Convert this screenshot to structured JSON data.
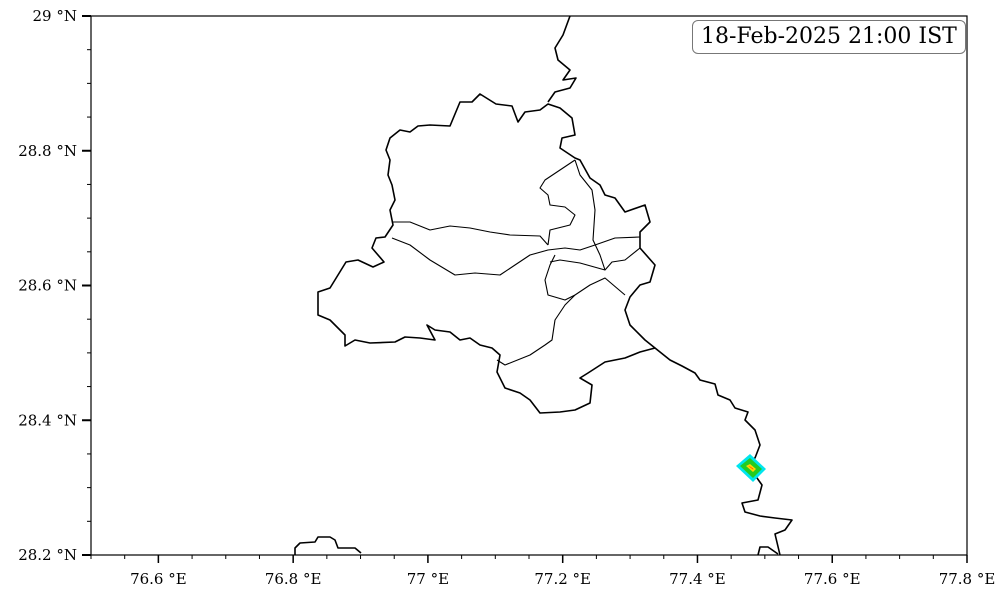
{
  "annotation": {
    "timestamp": "18-Feb-2025 21:00 IST"
  },
  "axes": {
    "lon_range": [
      76.5,
      77.8
    ],
    "lat_range": [
      28.2,
      29.0
    ],
    "x_ticks": [
      {
        "value": 76.6,
        "label": "76.6 °E"
      },
      {
        "value": 76.8,
        "label": "76.8 °E"
      },
      {
        "value": 77.0,
        "label": "77 °E"
      },
      {
        "value": 77.2,
        "label": "77.2 °E"
      },
      {
        "value": 77.4,
        "label": "77.4 °E"
      },
      {
        "value": 77.6,
        "label": "77.6 °E"
      },
      {
        "value": 77.8,
        "label": "77.8 °E"
      }
    ],
    "y_ticks": [
      {
        "value": 28.2,
        "label": "28.2 °N"
      },
      {
        "value": 28.4,
        "label": "28.4 °N"
      },
      {
        "value": 28.6,
        "label": "28.6 °N"
      },
      {
        "value": 28.8,
        "label": "28.8 °N"
      },
      {
        "value": 29.0,
        "label": "29 °N"
      }
    ]
  },
  "colors": {
    "boundary": "#000000",
    "level1": "#00e5ee",
    "level2": "#22cc22",
    "level3": "#ffd700",
    "level4": "#ff3300"
  }
}
